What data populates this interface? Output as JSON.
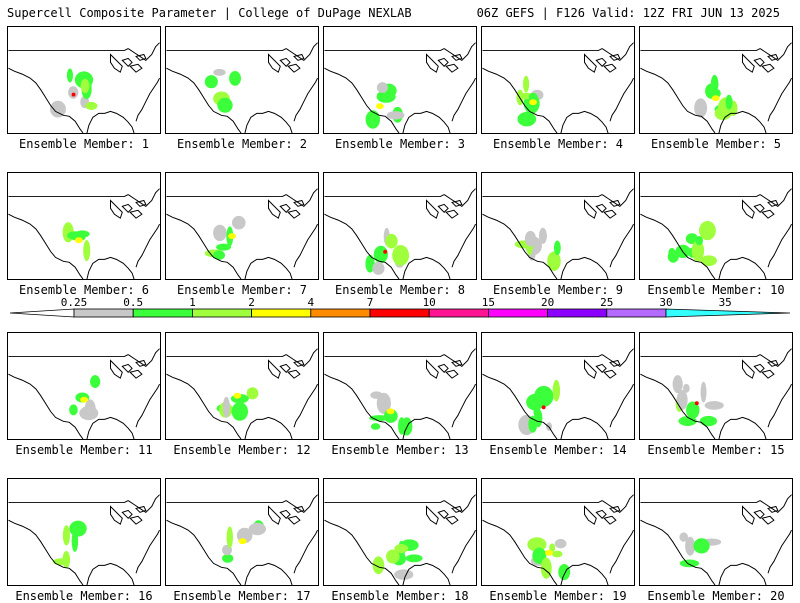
{
  "header": {
    "left": "Supercell Composite Parameter | College of DuPage NEXLAB",
    "right": "06Z GEFS | F126 Valid: 12Z FRI JUN 13 2025"
  },
  "members": [
    {
      "label": "Ensemble Member: 1"
    },
    {
      "label": "Ensemble Member: 2"
    },
    {
      "label": "Ensemble Member: 3"
    },
    {
      "label": "Ensemble Member: 4"
    },
    {
      "label": "Ensemble Member: 5"
    },
    {
      "label": "Ensemble Member: 6"
    },
    {
      "label": "Ensemble Member: 7"
    },
    {
      "label": "Ensemble Member: 8"
    },
    {
      "label": "Ensemble Member: 9"
    },
    {
      "label": "Ensemble Member: 10"
    },
    {
      "label": "Ensemble Member: 11"
    },
    {
      "label": "Ensemble Member: 12"
    },
    {
      "label": "Ensemble Member: 13"
    },
    {
      "label": "Ensemble Member: 14"
    },
    {
      "label": "Ensemble Member: 15"
    },
    {
      "label": "Ensemble Member: 16"
    },
    {
      "label": "Ensemble Member: 17"
    },
    {
      "label": "Ensemble Member: 18"
    },
    {
      "label": "Ensemble Member: 19"
    },
    {
      "label": "Ensemble Member: 20"
    }
  ],
  "colorbar": {
    "ticks": [
      "0.25",
      "0.5",
      "1",
      "2",
      "4",
      "7",
      "10",
      "15",
      "20",
      "25",
      "30",
      "35"
    ],
    "colors": [
      "#ffffff",
      "#c8c8c8",
      "#3cff3c",
      "#a0ff3c",
      "#ffff00",
      "#ff8c00",
      "#ff0000",
      "#ff1493",
      "#ff00ff",
      "#8c00ff",
      "#b469ff",
      "#33ffff"
    ]
  }
}
